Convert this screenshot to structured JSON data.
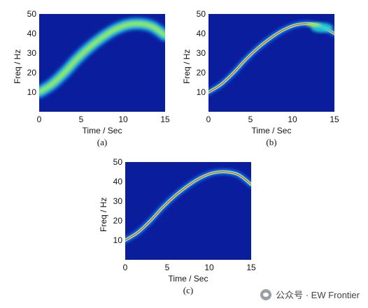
{
  "chart_data": [
    {
      "type": "heatmap",
      "panel_label": "(a)",
      "xlabel": "Time / Sec",
      "ylabel": "Freq / Hz",
      "xlim": [
        0,
        15
      ],
      "ylim": [
        0,
        50
      ],
      "xticks": [
        "0",
        "5",
        "10",
        "15"
      ],
      "yticks": [
        "10",
        "20",
        "30",
        "40",
        "50"
      ],
      "background_color": "#0a1d9c",
      "ridge": {
        "x": [
          0,
          1.5,
          3,
          4.5,
          6,
          7.5,
          9,
          10.5,
          12,
          13.5,
          15
        ],
        "y": [
          10,
          14,
          20,
          27,
          33,
          38,
          42,
          44.5,
          45,
          43.5,
          39
        ],
        "spread": "wide"
      }
    },
    {
      "type": "heatmap",
      "panel_label": "(b)",
      "xlabel": "Time / Sec",
      "ylabel": "Freq / Hz",
      "xlim": [
        0,
        15
      ],
      "ylim": [
        0,
        50
      ],
      "xticks": [
        "0",
        "5",
        "10",
        "15"
      ],
      "yticks": [
        "10",
        "20",
        "30",
        "40",
        "50"
      ],
      "background_color": "#0a1d9c",
      "ridge": {
        "x": [
          0,
          1.5,
          3,
          4.5,
          6,
          7.5,
          9,
          10.5,
          12,
          13.5,
          15
        ],
        "y": [
          10,
          14,
          20,
          27,
          33,
          38,
          42,
          44.5,
          45,
          43.5,
          40
        ],
        "spread": "narrow-with-smear-end"
      }
    },
    {
      "type": "heatmap",
      "panel_label": "(c)",
      "xlabel": "Time / Sec",
      "ylabel": "Freq / Hz",
      "xlim": [
        0,
        15
      ],
      "ylim": [
        0,
        50
      ],
      "xticks": [
        "0",
        "5",
        "10",
        "15"
      ],
      "yticks": [
        "10",
        "20",
        "30",
        "40",
        "50"
      ],
      "background_color": "#0a1d9c",
      "ridge": {
        "x": [
          0,
          1.5,
          3,
          4.5,
          6,
          7.5,
          9,
          10.5,
          12,
          13.5,
          15
        ],
        "y": [
          10,
          14,
          20,
          27,
          33,
          38,
          42,
          44.5,
          45,
          43.5,
          38.5
        ],
        "spread": "narrow"
      }
    }
  ],
  "watermark": {
    "text": "公众号 · EW Frontier",
    "icon": "wechat-icon"
  }
}
